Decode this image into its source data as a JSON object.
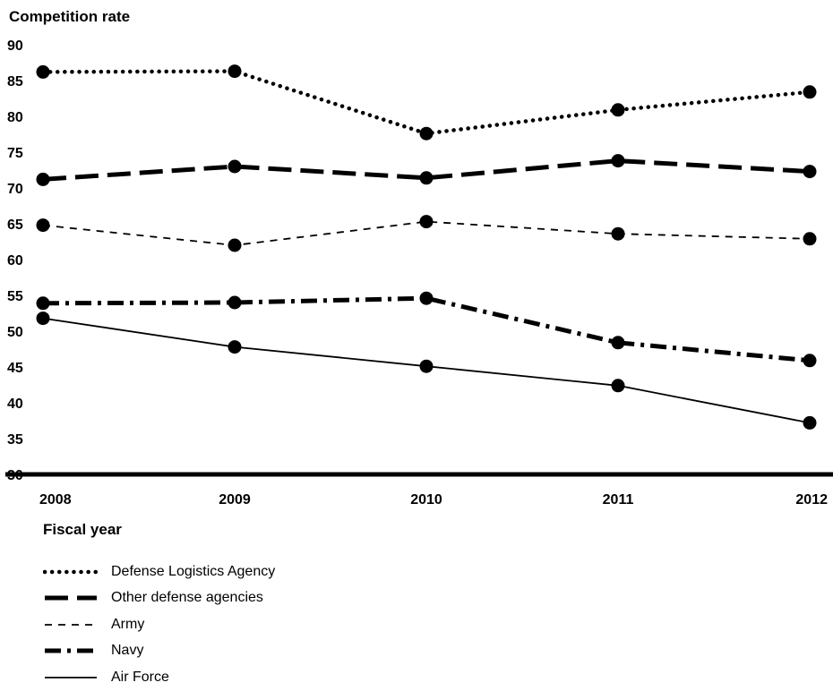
{
  "chart_data": {
    "type": "line",
    "title": "",
    "ylabel": "Competition rate",
    "xlabel": "Fiscal year",
    "x": [
      "2008",
      "2009",
      "2010",
      "2011",
      "2012"
    ],
    "ylim": [
      30,
      90
    ],
    "yticks": [
      30,
      35,
      40,
      45,
      50,
      55,
      60,
      65,
      70,
      75,
      80,
      85,
      90
    ],
    "grid": false,
    "legend_position": "bottom-left",
    "series": [
      {
        "name": "Defense Logistics Agency",
        "style": "dotted",
        "values": [
          86.2,
          86.3,
          77.6,
          80.9,
          83.4
        ]
      },
      {
        "name": "Other defense agencies",
        "style": "long-dash",
        "values": [
          71.2,
          73.0,
          71.4,
          73.8,
          72.3
        ]
      },
      {
        "name": "Army",
        "style": "short-dash",
        "values": [
          64.8,
          62.0,
          65.3,
          63.6,
          62.9
        ]
      },
      {
        "name": "Navy",
        "style": "dash-dot",
        "values": [
          53.9,
          54.0,
          54.6,
          48.4,
          45.9
        ]
      },
      {
        "name": "Air Force",
        "style": "solid",
        "values": [
          51.8,
          47.8,
          45.1,
          42.4,
          37.2
        ]
      }
    ]
  }
}
